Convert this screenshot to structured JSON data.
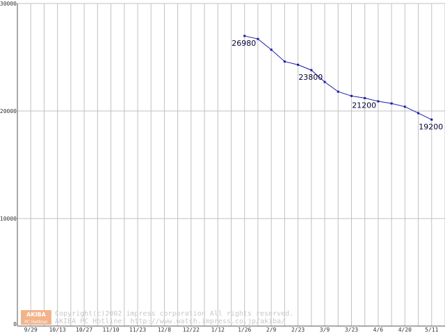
{
  "chart_data": {
    "type": "line",
    "title": "",
    "xlabel": "",
    "ylabel": "",
    "ylim": [
      0,
      30000
    ],
    "y_ticks": [
      "0",
      "10000",
      "20000",
      "30000"
    ],
    "x_tick_labels": [
      "9/29",
      "10/13",
      "10/27",
      "11/10",
      "11/23",
      "12/8",
      "12/22",
      "1/12",
      "1/26",
      "2/9",
      "2/23",
      "3/9",
      "3/23",
      "4/6",
      "4/20",
      "5/11"
    ],
    "grid": true,
    "colors": {
      "line": "#1a1aaa",
      "marker": "#1a1aaa",
      "grid": "#c0c0c0"
    },
    "series": [
      {
        "x_index": [
          17,
          18,
          19,
          20,
          21,
          22,
          23,
          24,
          25,
          26,
          27,
          28,
          29,
          30,
          31
        ],
        "values": [
          26980,
          26700,
          25700,
          24600,
          24300,
          23800,
          22700,
          21800,
          21400,
          21200,
          20900,
          20700,
          20400,
          19800,
          19200
        ]
      }
    ],
    "data_labels": [
      {
        "text": "26980",
        "point": 0
      },
      {
        "text": "23800",
        "point": 5
      },
      {
        "text": "21200",
        "point": 9
      },
      {
        "text": "19200",
        "point": 14
      }
    ]
  },
  "watermark": {
    "logo_top": "AKIBA",
    "logo_bottom": "PC Hotline!",
    "line1": "Copyright(c)2002 impress corporation All rights reserved.",
    "line2": "AKIBA PC Hotline!  http://www.watch.impress.co.jp/akiba/"
  }
}
